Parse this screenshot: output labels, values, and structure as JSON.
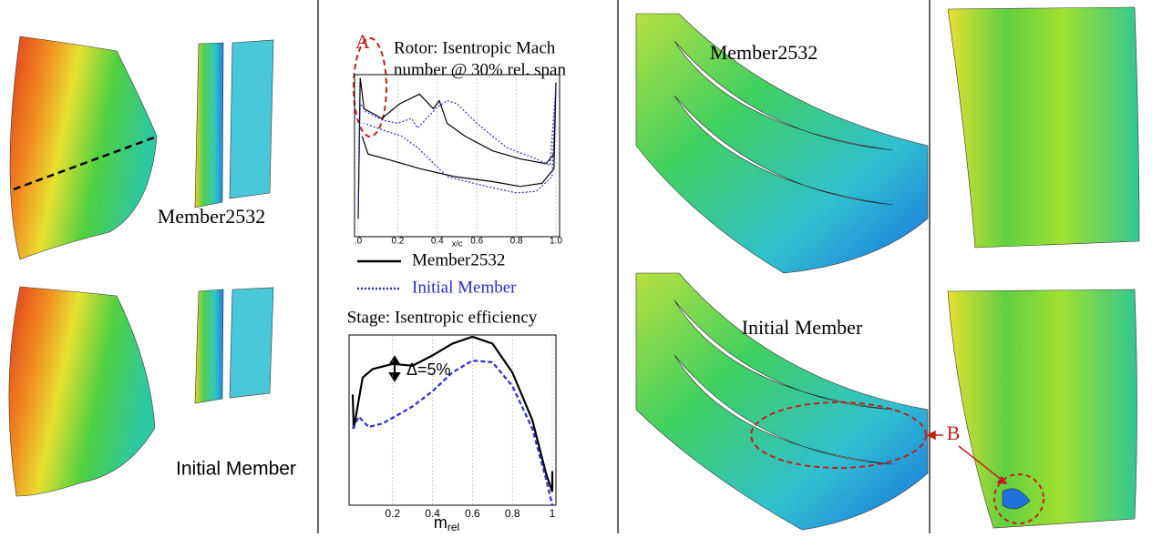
{
  "labels": {
    "left_top": "Member2532",
    "left_bottom": "Initial Member",
    "mid_top": "Member2532",
    "mid_bottom": "Initial Member",
    "marker_a": "A",
    "marker_b": "B"
  },
  "chart_data": [
    {
      "type": "line",
      "title": "Rotor: Isentropic Mach",
      "subtitle": "number @ 30% rel. span",
      "x_label": "x/c",
      "xlim": [
        0,
        1
      ],
      "ylim": [
        0,
        1
      ],
      "xticks": [
        {
          "value": 0,
          "label": ".0"
        },
        0.2,
        0.4,
        0.6,
        0.8,
        {
          "value": 1,
          "label": "1.0"
        }
      ],
      "grid": true,
      "series": [
        {
          "name": "Member2532",
          "color": "#000000",
          "dash": "solid",
          "x": [
            0,
            0.01,
            0.03,
            0.12,
            0.21,
            0.31,
            0.38,
            0.41,
            0.45,
            0.54,
            0.68,
            0.82,
            0.95,
            0.99,
            1.0,
            0.99,
            0.93,
            0.82,
            0.68,
            0.49,
            0.31,
            0.17,
            0.05,
            0.02
          ],
          "values": [
            0.11,
            0.98,
            0.79,
            0.73,
            0.82,
            0.88,
            0.79,
            0.84,
            0.7,
            0.62,
            0.53,
            0.48,
            0.45,
            0.51,
            0.95,
            0.42,
            0.33,
            0.31,
            0.34,
            0.37,
            0.42,
            0.47,
            0.51,
            0.62
          ]
        },
        {
          "name": "Initial Member",
          "color": "#2b2bd0",
          "dash": "dotted",
          "x": [
            0,
            0.01,
            0.04,
            0.12,
            0.2,
            0.27,
            0.3,
            0.4,
            0.45,
            0.5,
            0.6,
            0.75,
            0.9,
            0.97,
            1.0,
            0.98,
            0.9,
            0.8,
            0.65,
            0.45,
            0.3,
            0.22,
            0.12,
            0.03
          ],
          "values": [
            0.11,
            0.82,
            0.77,
            0.72,
            0.7,
            0.73,
            0.67,
            0.8,
            0.84,
            0.82,
            0.7,
            0.55,
            0.48,
            0.44,
            0.93,
            0.37,
            0.28,
            0.27,
            0.31,
            0.37,
            0.55,
            0.62,
            0.66,
            0.7
          ]
        }
      ]
    },
    {
      "type": "line",
      "title": "Stage: Isentropic efficiency",
      "x_label": "m",
      "x_label_sub": "rel",
      "annotation": "Δ=5%",
      "xlim": [
        0,
        1
      ],
      "ylim": [
        0,
        1
      ],
      "xticks": [
        0.2,
        0.4,
        0.6,
        0.8,
        1
      ],
      "grid": true,
      "series": [
        {
          "name": "Member2532",
          "color": "#000000",
          "dash": "solid",
          "x": [
            0,
            0.005,
            0.05,
            0.1,
            0.2,
            0.3,
            0.4,
            0.5,
            0.6,
            0.7,
            0.8,
            0.9,
            0.97,
            1.0,
            1.0
          ],
          "values": [
            0.65,
            0.45,
            0.75,
            0.8,
            0.83,
            0.82,
            0.88,
            0.95,
            0.99,
            0.95,
            0.78,
            0.5,
            0.18,
            0.08,
            0.2
          ]
        },
        {
          "name": "Initial Member",
          "color": "#2b2bd0",
          "dash": "dashed",
          "x": [
            0,
            0.03,
            0.08,
            0.15,
            0.3,
            0.4,
            0.5,
            0.6,
            0.7,
            0.8,
            0.9,
            0.97,
            1.0
          ],
          "values": [
            0.45,
            0.52,
            0.46,
            0.48,
            0.58,
            0.67,
            0.78,
            0.85,
            0.84,
            0.7,
            0.45,
            0.15,
            0.0
          ]
        }
      ]
    }
  ]
}
